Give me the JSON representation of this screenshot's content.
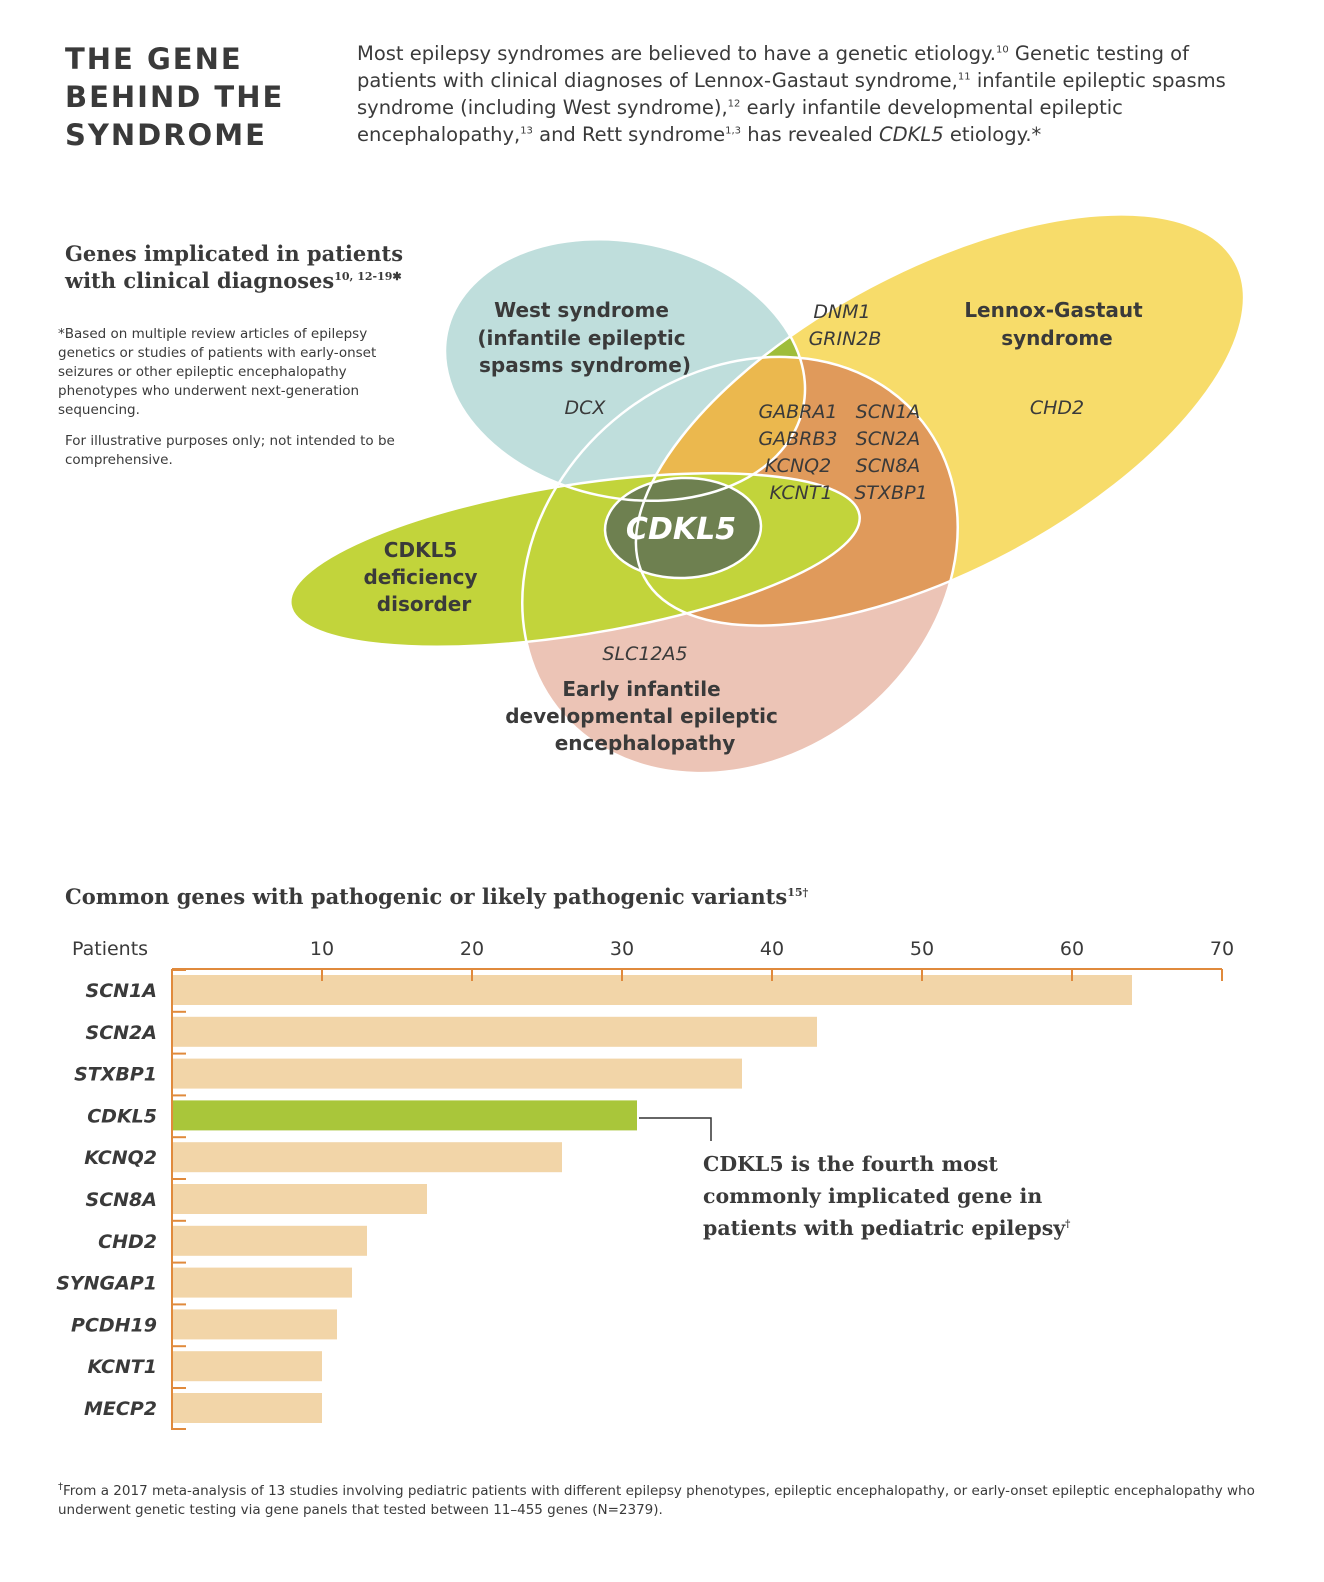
{
  "header": {
    "title": "THE GENE BEHIND THE SYNDROME",
    "intro": [
      {
        "t": "Most epilepsy syndromes are believed to have a genetic etiology."
      },
      {
        "sup": "10"
      },
      {
        "t": " Genetic testing of patients with clinical diagnoses of Lennox-Gastaut syndrome,"
      },
      {
        "sup": "11"
      },
      {
        "t": " infantile epileptic spasms syndrome (including West syndrome),"
      },
      {
        "sup": "12"
      },
      {
        "t": " early infantile developmental epileptic encephalopathy,"
      },
      {
        "sup": "13"
      },
      {
        "t": " and Rett syndrome"
      },
      {
        "sup": "1,3"
      },
      {
        "t": " has revealed "
      },
      {
        "i": "CDKL5"
      },
      {
        "t": " etiology.*"
      }
    ]
  },
  "venn": {
    "heading": "Genes implicated in patients with clinical diagnoses",
    "heading_sup": "10, 12-19✱",
    "note1": "*Based on multiple review articles of epilepsy genetics or studies of patients with early-onset seizures or other epileptic encephalopathy phenotypes who underwent next-generation sequencing.",
    "note2": "For illustrative purposes only; not intended to be comprehensive.",
    "colors": {
      "west": "#bfdedc",
      "lennox": "#f7dc6a",
      "cdkl5_disorder": "#c2d43b",
      "early_infantile": "#ecc4b6",
      "west_lennox": "#9fbd3b",
      "core": "#ebb84e",
      "lennox_early": "#e09a5b",
      "center": "#6e8050"
    },
    "west_label": [
      "West syndrome",
      "(infantile epileptic",
      "spasms syndrome)"
    ],
    "west_gene": "DCX",
    "lennox_label": [
      "Lennox-Gastaut",
      "syndrome"
    ],
    "lennox_gene": "CHD2",
    "west_lennox_genes": [
      "DNM1",
      "GRIN2B"
    ],
    "core_genes_left": [
      "GABRA1",
      "GABRB3",
      "KCNQ2",
      "KCNT1"
    ],
    "core_genes_right": [
      "SCN1A",
      "SCN2A",
      "SCN8A",
      "STXBP1"
    ],
    "center_label": "CDKL5",
    "cdkl5_disorder_label": [
      "CDKL5",
      "deficiency",
      "disorder"
    ],
    "early_gene": "SLC12A5",
    "early_label": [
      "Early infantile",
      "developmental epileptic",
      "encephalopathy"
    ]
  },
  "bar_section": {
    "heading": "Common genes with pathogenic or likely pathogenic variants",
    "heading_sup": "15†",
    "callout": "CDKL5 is the fourth most commonly implicated gene in patients with pediatric epilepsy",
    "callout_sup": "†",
    "footnote_mark": "†",
    "footnote": "From a 2017 meta-analysis of 13 studies involving pediatric patients with different epilepsy phenotypes, epileptic encephalopathy, or early-onset epileptic encephalopathy who underwent genetic testing via gene panels that tested between 11–455 genes (N=2379)."
  },
  "chart_data": {
    "type": "bar",
    "orientation": "horizontal",
    "xlabel": "Patients",
    "xlim": [
      0,
      70
    ],
    "xticks": [
      10,
      20,
      30,
      40,
      50,
      60,
      70
    ],
    "categories": [
      "SCN1A",
      "SCN2A",
      "STXBP1",
      "CDKL5",
      "KCNQ2",
      "SCN8A",
      "CHD2",
      "SYNGAP1",
      "PCDH19",
      "KCNT1",
      "MECP2"
    ],
    "values": [
      64,
      43,
      38,
      31,
      26,
      17,
      13,
      12,
      11,
      10,
      10
    ],
    "highlight": "CDKL5",
    "colors": {
      "bar": "#f2d5a8",
      "highlight": "#a9c63a",
      "axis": "#e08a3c"
    }
  }
}
